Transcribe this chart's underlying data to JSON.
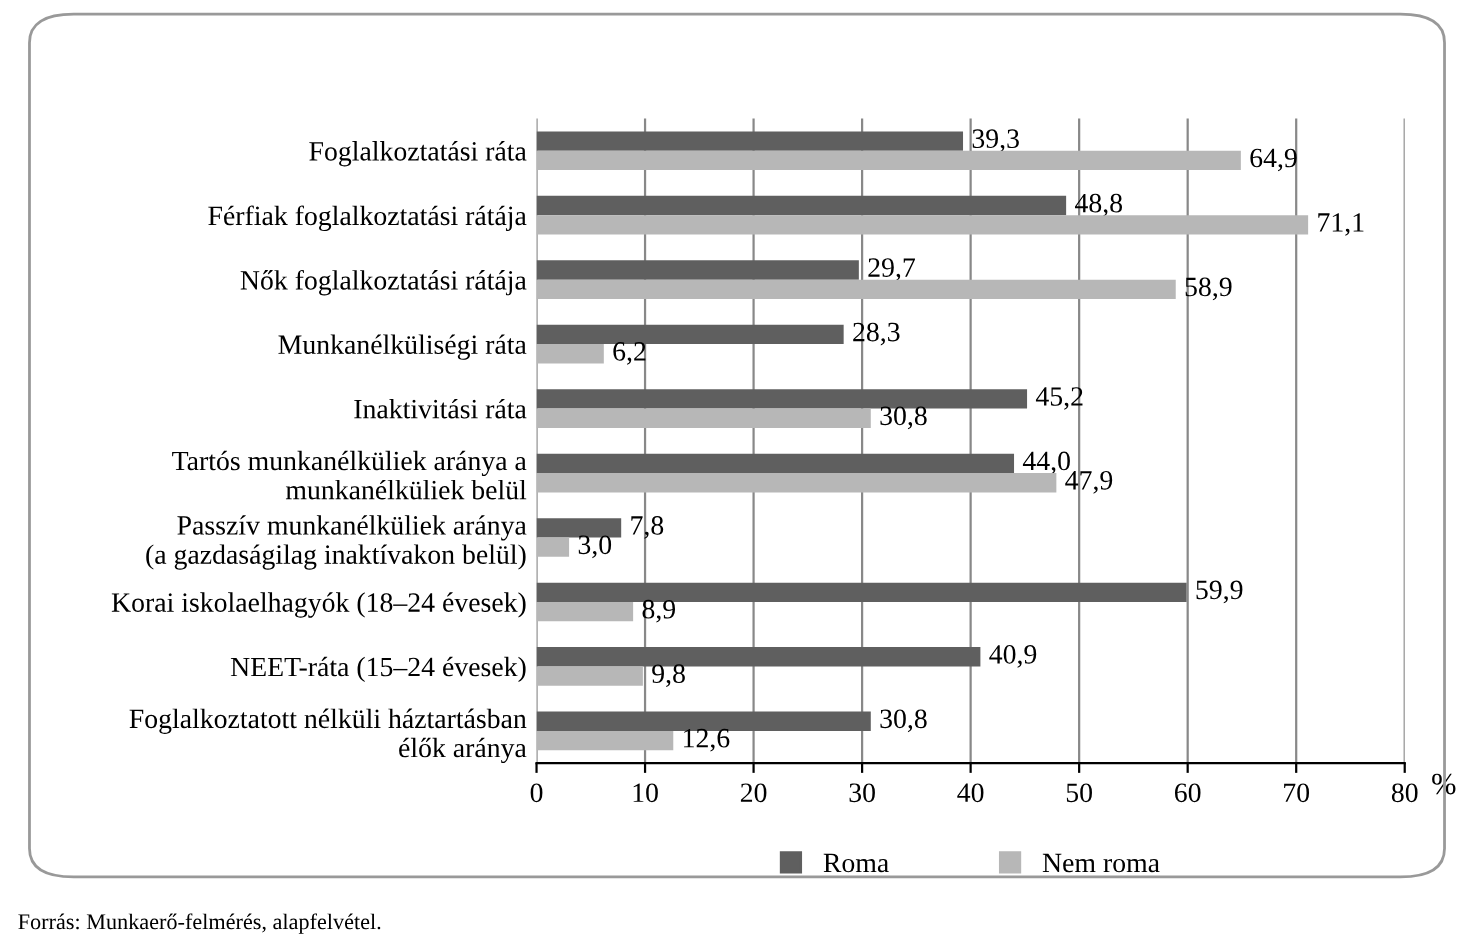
{
  "chart_data": {
    "type": "bar",
    "orientation": "horizontal",
    "categories": [
      "Foglalkoztatási ráta",
      "Férfiak foglalkoztatási rátája",
      "Nők foglalkoztatási rátája",
      "Munkanélküliségi ráta",
      "Inaktivitási ráta",
      "Tartós munkanélküliek aránya a\nmunkanélküliek belül",
      "Passzív munkanélküliek aránya\n(a gazdaságilag inaktívakon belül)",
      "Korai iskolaelhagyók (18–24 évesek)",
      "NEET-ráta (15–24 évesek)",
      "Foglalkoztatott nélküli háztartásban\nélők aránya"
    ],
    "series": [
      {
        "name": "Roma",
        "color": "#5f5f5f",
        "values": [
          39.3,
          48.8,
          29.7,
          28.3,
          45.2,
          44.0,
          7.8,
          59.9,
          40.9,
          30.8
        ],
        "value_labels": [
          "39,3",
          "48,8",
          "29,7",
          "28,3",
          "45,2",
          "44,0",
          "7,8",
          "59,9",
          "40,9",
          "30,8"
        ]
      },
      {
        "name": "Nem roma",
        "color": "#b7b7b7",
        "values": [
          64.9,
          71.1,
          58.9,
          6.2,
          30.8,
          47.9,
          3.0,
          8.9,
          9.8,
          12.6
        ],
        "value_labels": [
          "64,9",
          "71,1",
          "58,9",
          "6,2",
          "30,8",
          "47,9",
          "3,0",
          "8,9",
          "9,8",
          "12,6"
        ]
      }
    ],
    "xlim": [
      0,
      80
    ],
    "xticks": [
      0,
      10,
      20,
      30,
      40,
      50,
      60,
      70,
      80
    ],
    "xlabel": "%",
    "grid": "x",
    "legend": "bottom",
    "annotations": [
      "Forrás: Munkaerő-felmérés, alapfelvétel."
    ]
  }
}
